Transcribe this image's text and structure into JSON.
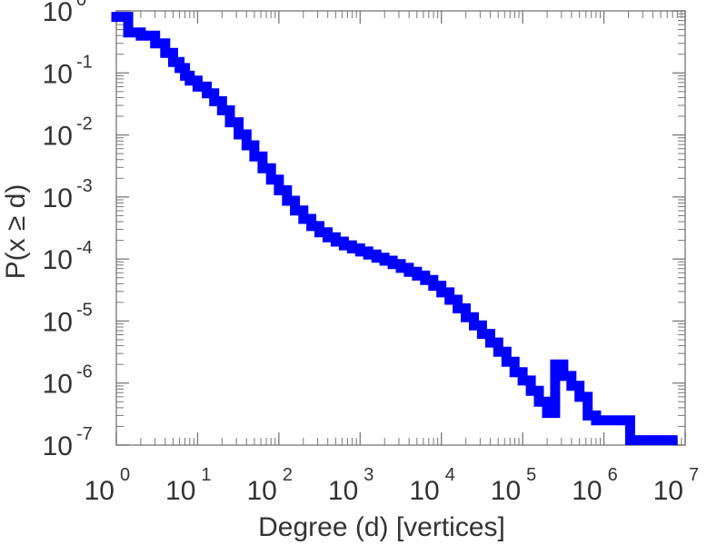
{
  "chart_data": {
    "type": "line",
    "style": "step",
    "title": "",
    "xlabel": "Degree (d) [vertices]",
    "ylabel": "P(x ≥ d)",
    "xscale": "log",
    "yscale": "log",
    "xlim": [
      1,
      10000000
    ],
    "ylim": [
      1e-07,
      1
    ],
    "x_ticks": [
      {
        "base": "10",
        "exp": "0"
      },
      {
        "base": "10",
        "exp": "1"
      },
      {
        "base": "10",
        "exp": "2"
      },
      {
        "base": "10",
        "exp": "3"
      },
      {
        "base": "10",
        "exp": "4"
      },
      {
        "base": "10",
        "exp": "5"
      },
      {
        "base": "10",
        "exp": "6"
      },
      {
        "base": "10",
        "exp": "7"
      }
    ],
    "y_ticks": [
      {
        "base": "10",
        "exp": "0"
      },
      {
        "base": "10",
        "exp": "-1"
      },
      {
        "base": "10",
        "exp": "-2"
      },
      {
        "base": "10",
        "exp": "-3"
      },
      {
        "base": "10",
        "exp": "-4"
      },
      {
        "base": "10",
        "exp": "-5"
      },
      {
        "base": "10",
        "exp": "-6"
      },
      {
        "base": "10",
        "exp": "-7"
      }
    ],
    "grid": false,
    "legend": "none",
    "color": "#0000ff",
    "series": [
      {
        "x": [
          1,
          1.4,
          2,
          3,
          4,
          5,
          6,
          7,
          8,
          10,
          13,
          16,
          20,
          25,
          32,
          40,
          50,
          63,
          80,
          100,
          126,
          158,
          200,
          251,
          316,
          398,
          501,
          631,
          794,
          1000,
          1259,
          1585,
          1995,
          2512,
          3162,
          3981,
          5012,
          6310,
          7943,
          10000,
          12589,
          15849,
          19953,
          25119,
          31623,
          39811,
          50119,
          63096,
          79433,
          100000,
          125893,
          158489,
          199526,
          251189,
          316228,
          398107,
          501187,
          631000,
          800000,
          1000000,
          1500000,
          2000000,
          2100000,
          3000000,
          5000000,
          7000000
        ],
        "y": [
          0.8,
          0.45,
          0.4,
          0.3,
          0.21,
          0.15,
          0.12,
          0.09,
          0.075,
          0.06,
          0.047,
          0.035,
          0.025,
          0.016,
          0.0102,
          0.0068,
          0.0045,
          0.0029,
          0.0019,
          0.00128,
          0.00087,
          0.000605,
          0.000443,
          0.000339,
          0.000269,
          0.000224,
          0.000191,
          0.000166,
          0.000148,
          0.000132,
          0.000118,
          0.000105,
          9.4e-05,
          8.3e-05,
          7.2e-05,
          6.2e-05,
          5.4e-05,
          4.6e-05,
          3.7e-05,
          2.9e-05,
          2.2e-05,
          1.6e-05,
          1.15e-05,
          8.5e-06,
          6.2e-06,
          4.5e-06,
          3.2e-06,
          2.2e-06,
          1.5e-06,
          1.1e-06,
          7.5e-07,
          5e-07,
          3.3e-07,
          2e-06,
          1.3e-06,
          9e-07,
          6e-07,
          3e-07,
          2.5e-07,
          2.5e-07,
          2.5e-07,
          2.5e-07,
          1.2e-07,
          1.2e-07,
          1.2e-07,
          1.2e-07
        ]
      }
    ]
  }
}
